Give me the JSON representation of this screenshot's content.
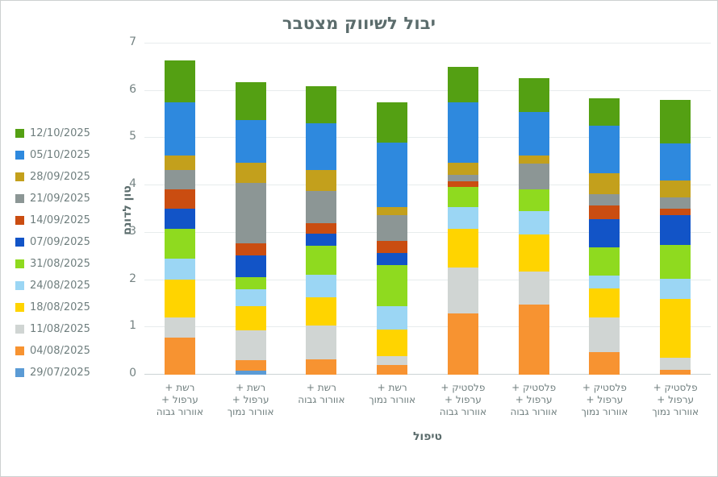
{
  "chart": {
    "title": "יבול לשיווק מצטבר",
    "x_axis_title": "טיפול",
    "y_axis_title": "טון לדונם"
  },
  "chart_data": {
    "type": "bar",
    "stacked": true,
    "title": "יבול לשיווק מצטבר",
    "xlabel": "טיפול",
    "ylabel": "טון לדונם",
    "ylim": [
      0,
      7
    ],
    "yticks": [
      0,
      1,
      2,
      3,
      4,
      5,
      6,
      7
    ],
    "grid": "horizontal",
    "legend_position": "left",
    "legend_order": "latest date on top, stacking order bottom-up is oldest first",
    "categories": [
      [
        "רשת +",
        "ערפול +",
        "אוורור גבוה"
      ],
      [
        "רשת +",
        "ערפול +",
        "אוורור נמוך"
      ],
      [
        "רשת +",
        "אוורור גבוה"
      ],
      [
        "רשת +",
        "אוורור נמוך"
      ],
      [
        "פלסטיק +",
        "ערפול +",
        "אוורור גבוה"
      ],
      [
        "פלסטיק +",
        "ערפול +",
        "אוורור גבוה"
      ],
      [
        "פלסטיק +",
        "ערפול +",
        "אוורור נמוך"
      ],
      [
        "פלסטיק +",
        "ערפול +",
        "אוורור נמוך"
      ]
    ],
    "series": [
      {
        "name": "29/07/2025",
        "color": "#5b9bd5",
        "values": [
          0,
          0.08,
          0,
          0,
          0,
          0,
          0,
          0
        ]
      },
      {
        "name": "04/08/2025",
        "color": "#f79331",
        "values": [
          0.78,
          0.22,
          0.33,
          0.2,
          1.3,
          1.48,
          0.47,
          0.1
        ]
      },
      {
        "name": "11/08/2025",
        "color": "#d0d5d3",
        "values": [
          0.43,
          0.63,
          0.71,
          0.2,
          0.96,
          0.7,
          0.74,
          0.25
        ]
      },
      {
        "name": "18/08/2025",
        "color": "#ffd400",
        "values": [
          0.8,
          0.51,
          0.6,
          0.55,
          0.83,
          0.78,
          0.62,
          1.25
        ]
      },
      {
        "name": "24/08/2025",
        "color": "#9bd6f4",
        "values": [
          0.45,
          0.37,
          0.48,
          0.49,
          0.45,
          0.5,
          0.26,
          0.43
        ]
      },
      {
        "name": "31/08/2025",
        "color": "#8fda1f",
        "values": [
          0.63,
          0.25,
          0.6,
          0.88,
          0.43,
          0.45,
          0.6,
          0.71
        ]
      },
      {
        "name": "07/09/2025",
        "color": "#1254c7",
        "values": [
          0.42,
          0.46,
          0.26,
          0.25,
          0,
          0,
          0.59,
          0.63
        ]
      },
      {
        "name": "14/09/2025",
        "color": "#ca4d11",
        "values": [
          0.4,
          0.25,
          0.23,
          0.26,
          0.11,
          0,
          0.29,
          0.14
        ]
      },
      {
        "name": "21/09/2025",
        "color": "#8c9695",
        "values": [
          0.42,
          1.28,
          0.68,
          0.54,
          0.14,
          0.55,
          0.25,
          0.23
        ]
      },
      {
        "name": "28/09/2025",
        "color": "#c3a01c",
        "values": [
          0.31,
          0.43,
          0.43,
          0.17,
          0.26,
          0.18,
          0.43,
          0.37
        ]
      },
      {
        "name": "05/10/2025",
        "color": "#2e89de",
        "values": [
          1.11,
          0.91,
          1.0,
          1.36,
          1.28,
          0.92,
          1.02,
          0.77
        ]
      },
      {
        "name": "12/10/2025",
        "color": "#54a013",
        "values": [
          0.89,
          0.79,
          0.77,
          0.86,
          0.74,
          0.7,
          0.57,
          0.93
        ]
      }
    ]
  }
}
